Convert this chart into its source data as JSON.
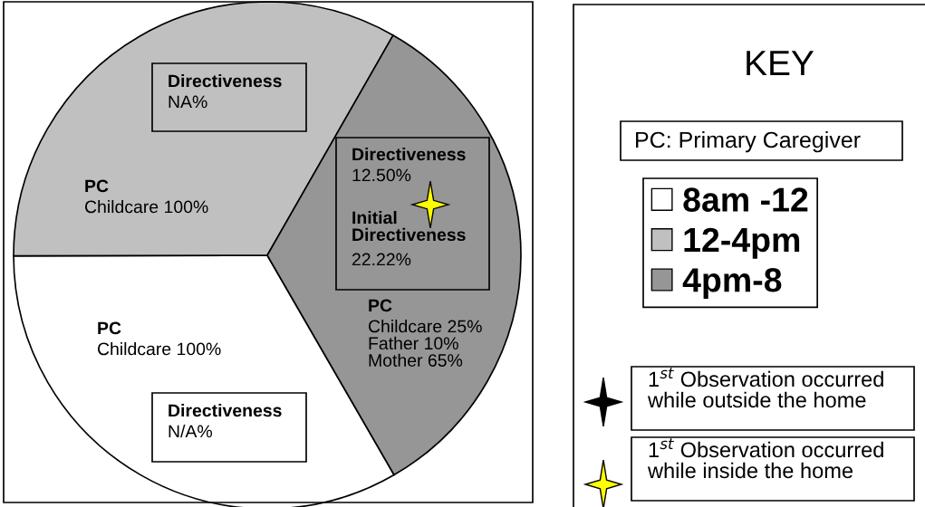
{
  "chart_data": {
    "type": "pie",
    "categories": [
      "8am -12",
      "12-4pm",
      "4pm-8"
    ],
    "values": [
      33.3,
      33.3,
      33.4
    ],
    "colors": [
      "#ffffff",
      "#c0c0c0",
      "#969696"
    ],
    "legend": "right",
    "legend_title": "KEY",
    "annotations": [
      "Directiveness",
      "NA%",
      "PC",
      "Childcare 100%",
      "Directiveness",
      "12.50%",
      "Initial\nDirectiveness",
      "22.22%",
      "PC",
      "Childcare 25%\nFather 10%\nMother 65%",
      "PC",
      "Childcare 100%",
      "Directiveness",
      "N/A%",
      "PC: Primary Caregiver",
      "1$^{st}$ Observation occurred\nwhile outside the home",
      "1$^{st}$ Observation occurred\nwhile inside the home"
    ]
  }
}
